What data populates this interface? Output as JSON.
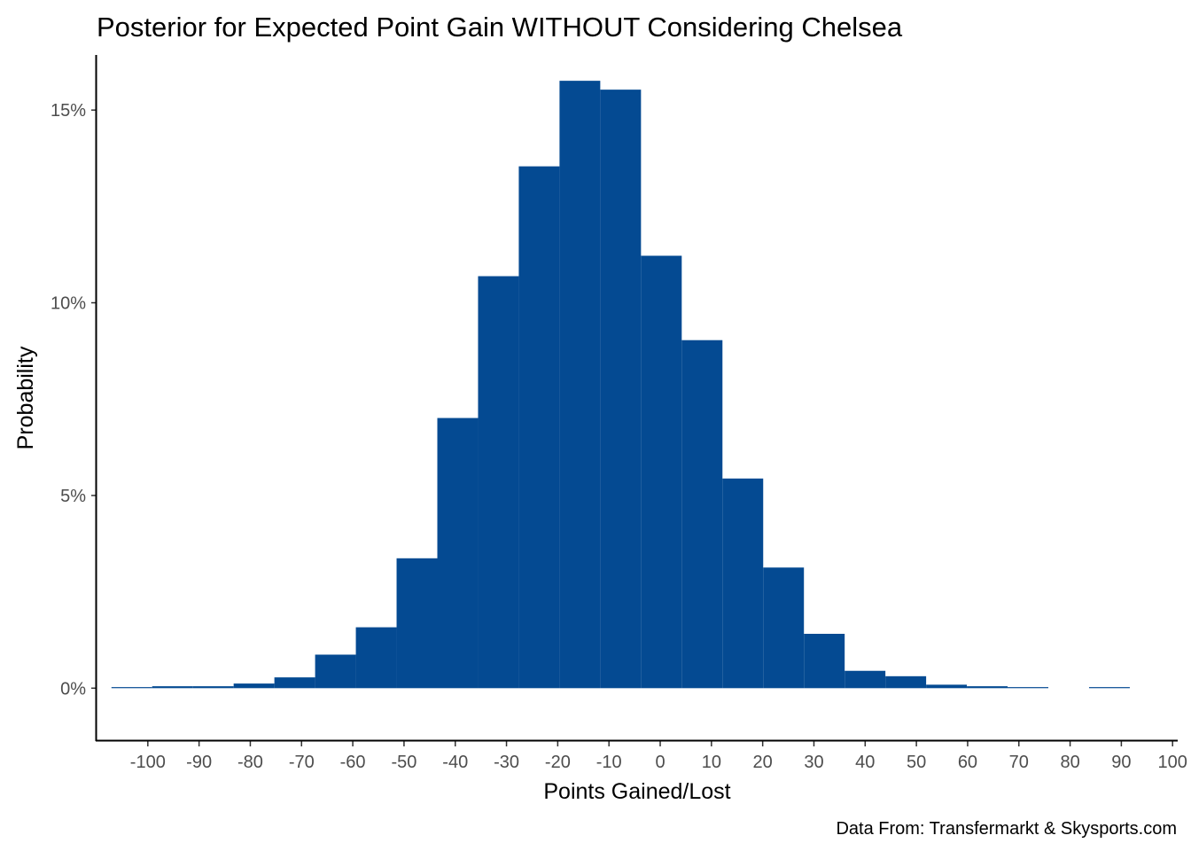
{
  "chart_data": {
    "type": "bar",
    "title": "Posterior for Expected Point Gain WITHOUT Considering Chelsea",
    "xlabel": "Points Gained/Lost",
    "ylabel": "Probability",
    "caption": "Data From: Transfermarkt & Skysports.com",
    "xlim": [
      -110,
      101
    ],
    "ylim": [
      -0.0135,
      0.1643
    ],
    "x_ticks": [
      -100,
      -90,
      -80,
      -70,
      -60,
      -50,
      -40,
      -30,
      -20,
      -10,
      0,
      10,
      20,
      30,
      40,
      50,
      60,
      70,
      80,
      90,
      100
    ],
    "x_tick_labels": [
      "-100",
      "-90",
      "-80",
      "-70",
      "-60",
      "-50",
      "-40",
      "-30",
      "-20",
      "-10",
      "0",
      "10",
      "20",
      "30",
      "40",
      "50",
      "60",
      "70",
      "80",
      "90",
      "100"
    ],
    "y_ticks": [
      0,
      0.05,
      0.1,
      0.15
    ],
    "y_tick_labels": [
      "0%",
      "5%",
      "10%",
      "15%"
    ],
    "bin_width": 7.95,
    "bins_start": [
      -107.1,
      -99.15,
      -91.2,
      -83.25,
      -75.3,
      -67.35,
      -59.4,
      -51.45,
      -43.5,
      -35.55,
      -27.6,
      -19.65,
      -11.7,
      -3.75,
      4.2,
      12.15,
      20.1,
      28.05,
      36.0,
      43.95,
      51.9,
      59.85,
      67.8,
      75.75,
      83.7
    ],
    "values": [
      0.0002,
      0.0005,
      0.0005,
      0.0012,
      0.0028,
      0.0087,
      0.0158,
      0.0337,
      0.0701,
      0.1069,
      0.1354,
      0.1576,
      0.1553,
      0.1122,
      0.0903,
      0.0544,
      0.0313,
      0.0141,
      0.0045,
      0.0031,
      0.0009,
      0.0005,
      0.0002,
      0.0,
      0.0002
    ],
    "bar_color": "#044A92",
    "grid": false,
    "legend": "none"
  }
}
